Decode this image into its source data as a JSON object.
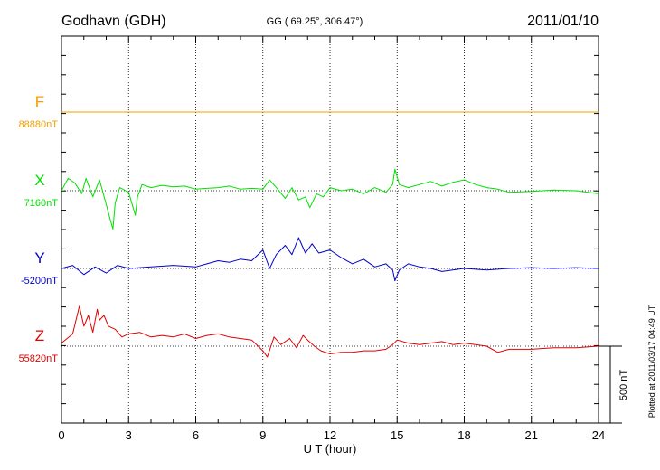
{
  "header": {
    "station": "Godhavn (GDH)",
    "coords": "GG ( 69.25°, 306.47°)",
    "date": "2011/01/10"
  },
  "footer": {
    "plotted": "Plotted at 2011/03/17 04:49 UT",
    "scale_label": "500 nT"
  },
  "chart_data": {
    "type": "line",
    "xlabel": "U T (hour)",
    "xlim": [
      0,
      24
    ],
    "xticks": [
      "0",
      "3",
      "6",
      "9",
      "12",
      "15",
      "18",
      "21",
      "24"
    ],
    "grid": true,
    "scale_bar_nt": 500,
    "series": [
      {
        "name": "F",
        "baseline_label": "88880nT",
        "color": "#f0a000",
        "x": [
          0,
          3,
          6,
          9,
          12,
          15,
          18,
          21,
          24
        ],
        "values": [
          88880,
          88880,
          88880,
          88880,
          88880,
          88880,
          88880,
          88880,
          88880
        ]
      },
      {
        "name": "X",
        "baseline_label": "7160nT",
        "color": "#00e000",
        "x": [
          0,
          0.3,
          0.6,
          0.9,
          1.1,
          1.4,
          1.7,
          2.0,
          2.2,
          2.3,
          2.4,
          2.6,
          3.0,
          3.3,
          3.4,
          3.6,
          4.0,
          4.5,
          5.0,
          5.5,
          6.0,
          6.5,
          7.0,
          7.5,
          8.0,
          8.5,
          9.0,
          9.3,
          9.6,
          10.0,
          10.3,
          10.6,
          10.9,
          11.1,
          11.4,
          11.7,
          12.0,
          12.5,
          13.0,
          13.5,
          14.0,
          14.5,
          14.8,
          14.9,
          15.1,
          15.5,
          16.0,
          16.5,
          17.0,
          17.5,
          18.0,
          18.5,
          19.0,
          19.5,
          20.0,
          21.0,
          22.0,
          23.0,
          24.0
        ],
        "values": [
          7160,
          7240,
          7210,
          7140,
          7240,
          7120,
          7230,
          7070,
          6960,
          6910,
          7080,
          7180,
          7150,
          7000,
          7120,
          7200,
          7180,
          7195,
          7185,
          7190,
          7170,
          7175,
          7180,
          7190,
          7170,
          7175,
          7170,
          7230,
          7180,
          7110,
          7180,
          7100,
          7120,
          7050,
          7140,
          7120,
          7180,
          7160,
          7170,
          7140,
          7180,
          7150,
          7200,
          7300,
          7200,
          7180,
          7200,
          7220,
          7190,
          7215,
          7230,
          7200,
          7180,
          7170,
          7150,
          7155,
          7165,
          7160,
          7140
        ]
      },
      {
        "name": "Y",
        "baseline_label": "-5200nT",
        "color": "#0000cc",
        "x": [
          0,
          0.5,
          1.0,
          1.5,
          2.0,
          2.5,
          3.0,
          4.0,
          5.0,
          6.0,
          6.5,
          7.0,
          7.5,
          8.0,
          8.5,
          9.0,
          9.3,
          9.6,
          10.0,
          10.3,
          10.6,
          10.9,
          11.2,
          11.5,
          12.0,
          12.5,
          13.0,
          13.5,
          14.0,
          14.5,
          14.8,
          14.9,
          15.1,
          15.5,
          16.0,
          16.5,
          17.0,
          18.0,
          19.0,
          20.0,
          21.0,
          22.0,
          23.0,
          24.0
        ],
        "values": [
          -5200,
          -5180,
          -5240,
          -5190,
          -5230,
          -5180,
          -5200,
          -5190,
          -5180,
          -5190,
          -5170,
          -5150,
          -5160,
          -5140,
          -5150,
          -5080,
          -5200,
          -5110,
          -5050,
          -5110,
          -5000,
          -5100,
          -5040,
          -5100,
          -5080,
          -5130,
          -5170,
          -5140,
          -5190,
          -5170,
          -5210,
          -5280,
          -5210,
          -5170,
          -5190,
          -5200,
          -5220,
          -5200,
          -5210,
          -5200,
          -5195,
          -5200,
          -5195,
          -5200
        ]
      },
      {
        "name": "Z",
        "baseline_label": "55820nT",
        "color": "#e00000",
        "x": [
          0,
          0.5,
          0.8,
          1.0,
          1.2,
          1.4,
          1.6,
          1.7,
          1.9,
          2.1,
          2.4,
          2.7,
          3.0,
          3.5,
          4.0,
          4.5,
          5.0,
          5.5,
          6.0,
          6.5,
          7.0,
          7.5,
          8.0,
          8.5,
          9.0,
          9.2,
          9.5,
          9.8,
          10.2,
          10.5,
          10.8,
          11.0,
          11.3,
          11.6,
          12.0,
          12.5,
          13.0,
          13.5,
          14.0,
          14.5,
          14.8,
          15.0,
          15.5,
          16.0,
          16.5,
          17.0,
          17.5,
          18.0,
          18.5,
          19.0,
          19.5,
          20.0,
          21.0,
          22.0,
          23.0,
          24.0
        ],
        "values": [
          55840,
          55900,
          56080,
          55950,
          56020,
          55910,
          56060,
          55990,
          56020,
          55950,
          55930,
          55880,
          55900,
          55910,
          55880,
          55890,
          55880,
          55900,
          55870,
          55890,
          55900,
          55880,
          55870,
          55860,
          55790,
          55750,
          55880,
          55830,
          55870,
          55810,
          55890,
          55860,
          55820,
          55790,
          55770,
          55780,
          55780,
          55790,
          55790,
          55800,
          55830,
          55860,
          55840,
          55830,
          55840,
          55850,
          55830,
          55840,
          55830,
          55820,
          55780,
          55800,
          55800,
          55810,
          55810,
          55820
        ]
      }
    ]
  }
}
